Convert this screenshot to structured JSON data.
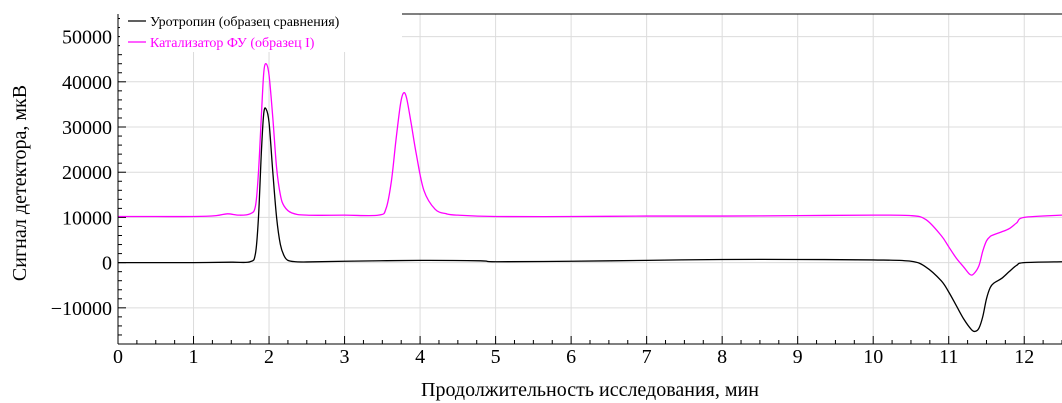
{
  "chart_data": {
    "type": "line",
    "xlabel": "Продолжительность исследования, мин",
    "ylabel": "Сигнал детектора,  мкВ",
    "xlim": [
      0,
      12.5
    ],
    "ylim": [
      -18000,
      55000
    ],
    "x_ticks": [
      0,
      1,
      2,
      3,
      4,
      5,
      6,
      7,
      8,
      9,
      10,
      11,
      12
    ],
    "y_ticks": [
      -10000,
      0,
      10000,
      20000,
      30000,
      40000,
      50000
    ],
    "y_tick_labels": [
      "−10000",
      "0",
      "10000",
      "20000",
      "30000",
      "40000",
      "50000"
    ],
    "grid": true,
    "legend_position": "top-left",
    "series": [
      {
        "name": "Уротропин (образец сравнения)",
        "color": "#000000",
        "x": [
          0,
          0.5,
          1.0,
          1.5,
          1.75,
          1.82,
          1.86,
          1.9,
          1.93,
          1.96,
          2.0,
          2.05,
          2.1,
          2.15,
          2.2,
          2.25,
          2.35,
          2.5,
          3.0,
          4.0,
          4.8,
          5.0,
          6.0,
          7.0,
          8.0,
          9.0,
          10.0,
          10.5,
          10.7,
          10.9,
          11.0,
          11.1,
          11.2,
          11.3,
          11.35,
          11.4,
          11.45,
          11.5,
          11.55,
          11.6,
          11.7,
          11.8,
          11.9,
          12.0,
          12.5
        ],
        "y": [
          0,
          0,
          0,
          100,
          200,
          2000,
          10000,
          25000,
          33000,
          34000,
          31000,
          20000,
          10000,
          4000,
          1500,
          500,
          200,
          150,
          300,
          500,
          400,
          200,
          300,
          500,
          700,
          700,
          600,
          300,
          -1000,
          -4000,
          -6500,
          -9500,
          -12500,
          -14800,
          -15200,
          -14500,
          -12000,
          -8000,
          -5500,
          -4500,
          -3500,
          -2000,
          -600,
          0,
          200
        ]
      },
      {
        "name": "Катализатор ФУ (образец I)",
        "color": "#ff00ff",
        "x": [
          0,
          0.5,
          1.0,
          1.3,
          1.45,
          1.6,
          1.75,
          1.82,
          1.86,
          1.9,
          1.93,
          1.96,
          2.0,
          2.05,
          2.1,
          2.15,
          2.2,
          2.3,
          2.5,
          3.0,
          3.45,
          3.55,
          3.62,
          3.68,
          3.74,
          3.78,
          3.82,
          3.88,
          3.95,
          4.05,
          4.2,
          4.35,
          4.5,
          5.0,
          6.0,
          7.0,
          8.0,
          9.0,
          10.0,
          10.5,
          10.7,
          10.9,
          11.0,
          11.1,
          11.2,
          11.28,
          11.33,
          11.4,
          11.45,
          11.5,
          11.55,
          11.6,
          11.7,
          11.8,
          11.9,
          12.0,
          12.5
        ],
        "y": [
          10200,
          10200,
          10200,
          10400,
          10800,
          10500,
          10800,
          12500,
          20000,
          33000,
          42000,
          44000,
          41500,
          32000,
          21000,
          15000,
          12500,
          11000,
          10500,
          10500,
          10500,
          12000,
          18000,
          27000,
          35000,
          37500,
          36500,
          31000,
          24000,
          16000,
          11800,
          10800,
          10500,
          10200,
          10200,
          10300,
          10300,
          10400,
          10500,
          10400,
          9500,
          6000,
          3500,
          1000,
          -1000,
          -2600,
          -2500,
          -700,
          2500,
          4800,
          5800,
          6200,
          6800,
          7500,
          8800,
          10000,
          10500
        ]
      }
    ]
  }
}
